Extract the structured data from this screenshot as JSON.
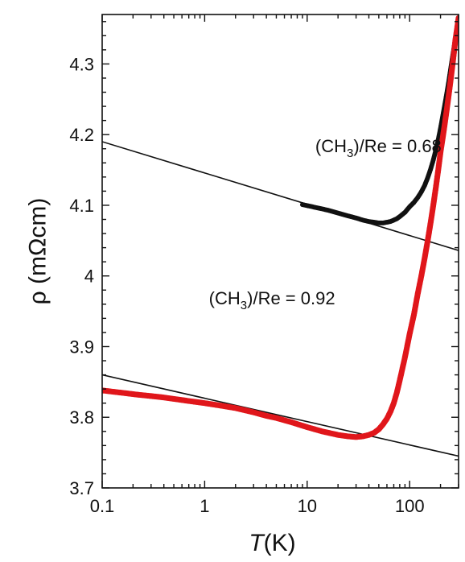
{
  "chart_data": {
    "type": "scatter",
    "title": "",
    "xlabel": {
      "italic": "T",
      "rest": "(K)"
    },
    "ylabel": "ρ (mΩcm)",
    "x_scale": "log",
    "xlim": [
      0.1,
      300
    ],
    "ylim": [
      3.7,
      4.37
    ],
    "x_ticks": [
      0.1,
      1,
      10,
      100
    ],
    "x_tick_labels": [
      "0.1",
      "1",
      "10",
      "100"
    ],
    "y_ticks": [
      3.7,
      3.8,
      3.9,
      4.0,
      4.1,
      4.2,
      4.3
    ],
    "y_tick_labels": [
      "3.7",
      "3.8",
      "3.9",
      "4",
      "4.1",
      "4.2",
      "4.3"
    ],
    "grid": false,
    "legend": "none",
    "annotations": [
      {
        "pre": "(CH",
        "sub": "3",
        "post": ")/Re = 0.68",
        "x": 12,
        "y": 4.175
      },
      {
        "pre": "(CH",
        "sub": "3",
        "post": ")/Re = 0.92",
        "x": 1.1,
        "y": 3.96
      }
    ],
    "series": [
      {
        "color": "#111111",
        "marker_size": 3,
        "x": [
          9,
          12,
          16,
          20,
          25,
          30,
          35,
          40,
          45,
          50,
          55,
          60,
          65,
          70,
          75,
          80,
          90,
          100,
          110,
          120,
          130,
          140,
          150,
          160,
          170,
          180,
          190,
          200,
          210,
          220,
          230,
          240,
          250,
          260,
          270,
          280,
          290,
          300
        ],
        "y": [
          4.101,
          4.097,
          4.093,
          4.089,
          4.085,
          4.082,
          4.079,
          4.077,
          4.076,
          4.075,
          4.075,
          4.076,
          4.077,
          4.079,
          4.081,
          4.084,
          4.09,
          4.098,
          4.104,
          4.111,
          4.119,
          4.128,
          4.139,
          4.151,
          4.164,
          4.178,
          4.193,
          4.209,
          4.226,
          4.242,
          4.258,
          4.274,
          4.291,
          4.307,
          4.322,
          4.337,
          4.351,
          4.362
        ]
      },
      {
        "color": "#e0161b",
        "marker_size": 3.6,
        "x": [
          0.1,
          0.13,
          0.17,
          0.22,
          0.3,
          0.4,
          0.5,
          0.7,
          1.0,
          1.5,
          2,
          3,
          4,
          5,
          7,
          10,
          14,
          20,
          25,
          30,
          35,
          40,
          45,
          50,
          55,
          60,
          65,
          70,
          75,
          80,
          90,
          100,
          110,
          120,
          130,
          140,
          150,
          160,
          170,
          180,
          190,
          200,
          210,
          220,
          230,
          240,
          250,
          260,
          270,
          280,
          290,
          300
        ],
        "y": [
          3.838,
          3.836,
          3.834,
          3.832,
          3.83,
          3.828,
          3.826,
          3.823,
          3.82,
          3.816,
          3.813,
          3.807,
          3.802,
          3.799,
          3.793,
          3.786,
          3.78,
          3.775,
          3.773,
          3.772,
          3.773,
          3.775,
          3.778,
          3.783,
          3.79,
          3.798,
          3.808,
          3.82,
          3.835,
          3.852,
          3.885,
          3.918,
          3.945,
          3.975,
          4.0,
          4.025,
          4.05,
          4.075,
          4.1,
          4.125,
          4.15,
          4.175,
          4.195,
          4.215,
          4.235,
          4.255,
          4.275,
          4.295,
          4.315,
          4.335,
          4.35,
          4.365
        ]
      }
    ],
    "fit_lines": [
      {
        "color": "#111111",
        "x": [
          0.1,
          300
        ],
        "y": [
          4.19,
          4.036
        ]
      },
      {
        "color": "#111111",
        "x": [
          0.1,
          300
        ],
        "y": [
          3.86,
          3.745
        ]
      }
    ]
  }
}
